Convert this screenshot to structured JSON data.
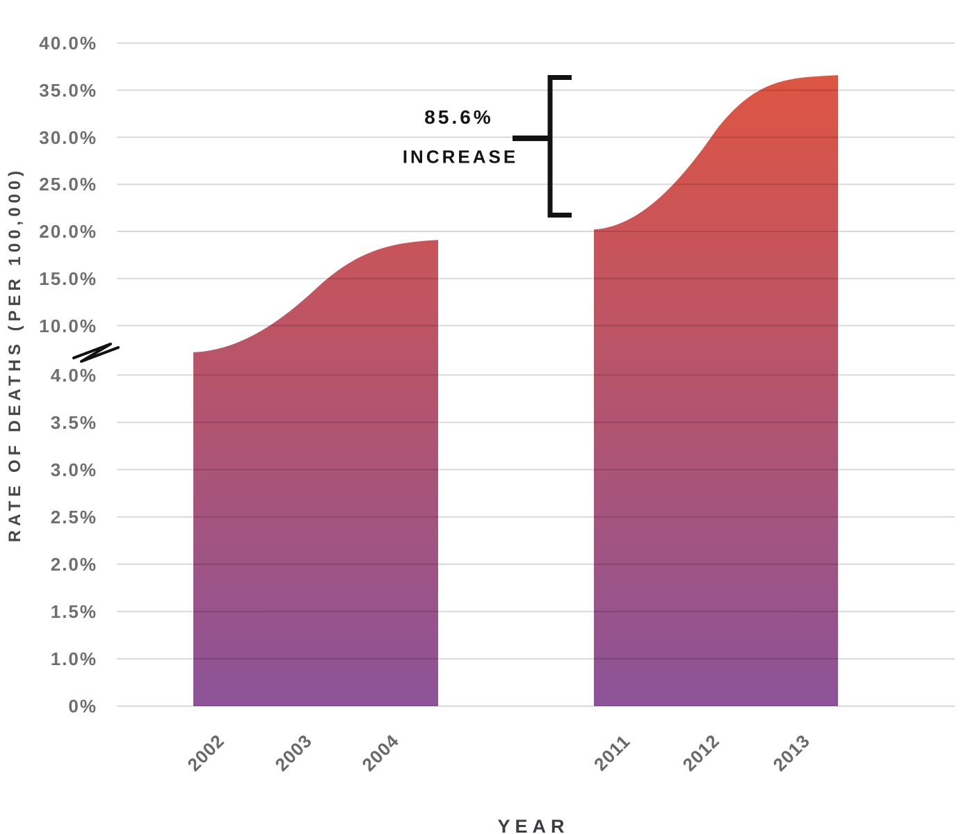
{
  "chart_data": {
    "type": "area",
    "title": "",
    "xlabel": "YEAR",
    "ylabel": "RATE OF DEATHS (PER 100,000)",
    "categories": [
      "2002",
      "2003",
      "2004",
      "2011",
      "2012",
      "2013"
    ],
    "series": [
      {
        "name": "rate-of-deaths",
        "values": [
          4.7,
          13.9,
          19.1,
          20.2,
          30.8,
          36.6
        ]
      }
    ],
    "segments": [
      [
        0,
        1,
        2
      ],
      [
        3,
        4,
        5
      ]
    ],
    "y_axis": {
      "upper_ticks": [
        {
          "label": "40.0%",
          "value": 40
        },
        {
          "label": "35.0%",
          "value": 35
        },
        {
          "label": "30.0%",
          "value": 30
        },
        {
          "label": "25.0%",
          "value": 25
        },
        {
          "label": "20.0%",
          "value": 20
        },
        {
          "label": "15.0%",
          "value": 15
        },
        {
          "label": "10.0%",
          "value": 10
        }
      ],
      "lower_ticks": [
        {
          "label": "4.0%",
          "value": 4
        },
        {
          "label": "3.5%",
          "value": 3.5
        },
        {
          "label": "3.0%",
          "value": 3
        },
        {
          "label": "2.5%",
          "value": 2.5
        },
        {
          "label": "2.0%",
          "value": 2
        },
        {
          "label": "1.5%",
          "value": 1.5
        },
        {
          "label": "1.0%",
          "value": 1
        },
        {
          "label": "0%",
          "value": 0
        }
      ],
      "broken_axis": true,
      "break_between": [
        "4.0%",
        "10.0%"
      ]
    },
    "annotation": {
      "value": "85.6%",
      "label": "INCREASE"
    },
    "grid": true,
    "legend": false,
    "colors": {
      "gradient_top": "#e2553e",
      "gradient_bottom": "#8c5398",
      "gridline": "rgba(0,0,0,0.15)",
      "annotation": "#141414",
      "tick_text": "#6f6f6f",
      "axis_title_text": "#46464c"
    }
  }
}
